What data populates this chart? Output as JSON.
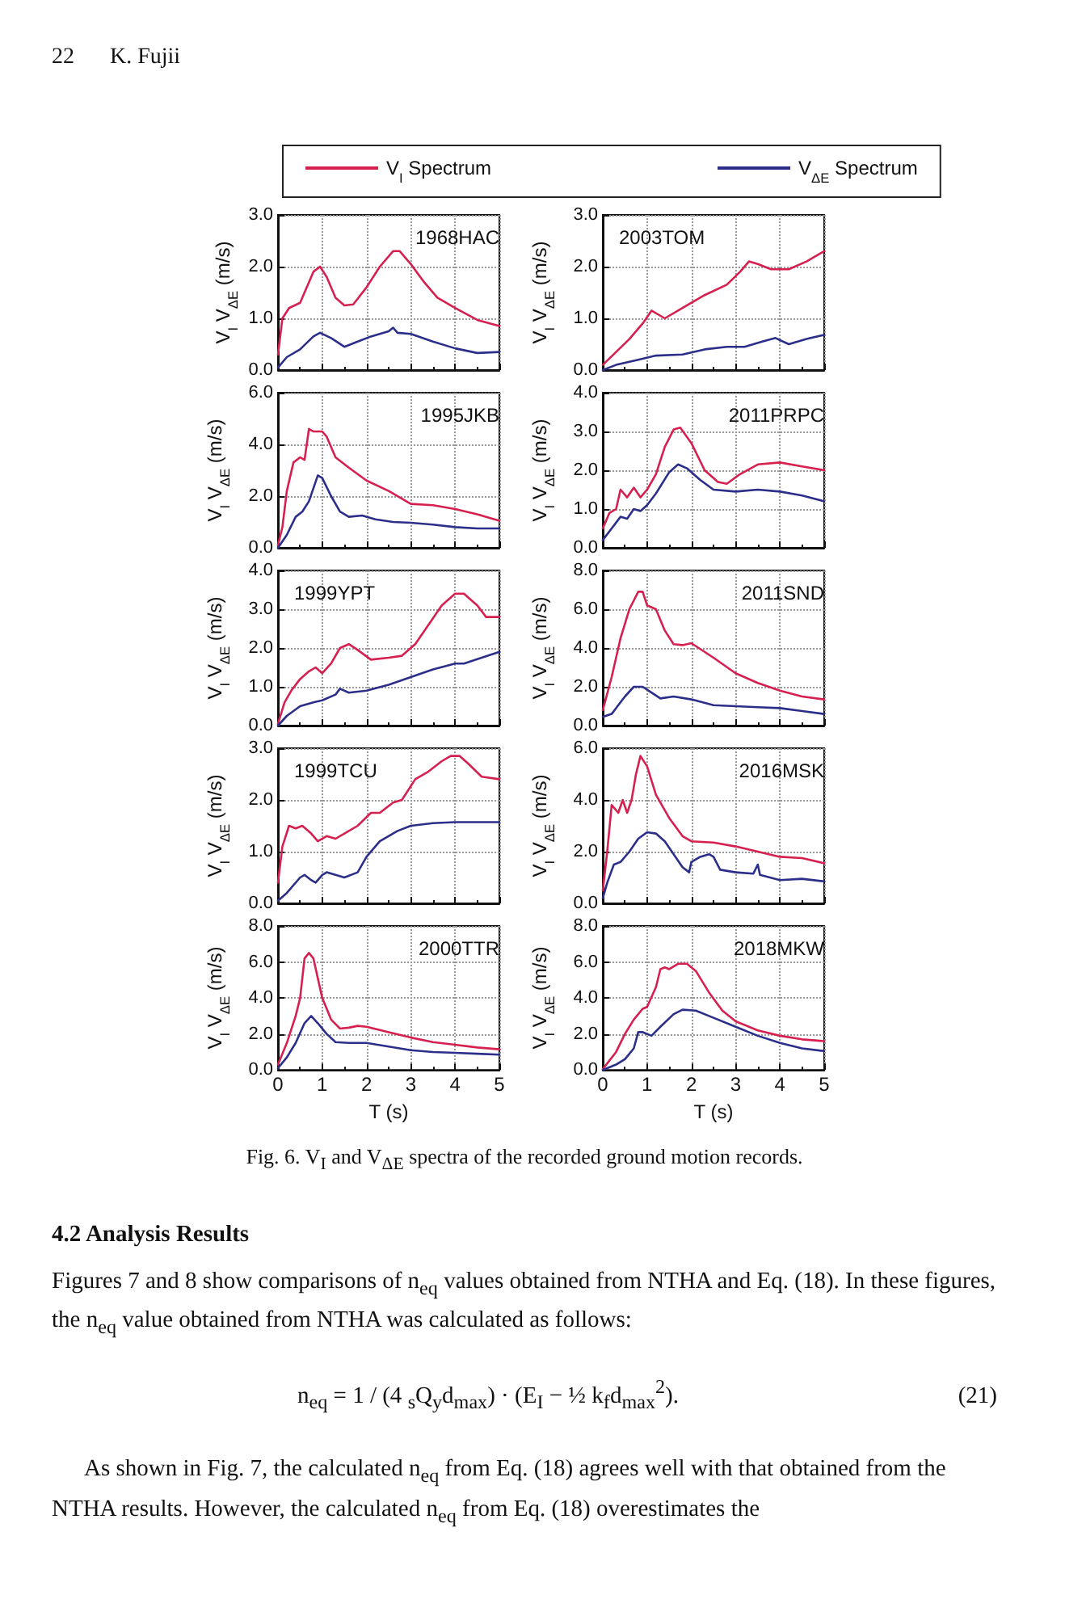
{
  "chart_data": [
    {
      "type": "line",
      "title": "1968HAC",
      "ylabel": "V$_{I}$ V$_{ΔE}$ (m/s)",
      "annotations": [
        "22",
        "K. Fujii"
      ],
      "xlim": [
        0,
        5
      ],
      "xticks": [
        0,
        1,
        2,
        3,
        4,
        5
      ],
      "ylim": [
        0,
        3
      ],
      "yticks": [
        {
          "value": 0,
          "label": "0.0"
        },
        {
          "value": 1,
          "label": "1.0"
        },
        {
          "value": 2,
          "label": "2.0"
        },
        {
          "value": 3,
          "label": "3.0"
        }
      ],
      "grid": true,
      "tick_labels": "y",
      "legend": "top",
      "marker": "none",
      "series": [
        {
          "name": "V$_{I}$ Spectrum",
          "color": "#d62050",
          "x": [
            0,
            0.1,
            0.25,
            0.5,
            0.6,
            0.8,
            0.95,
            1.1,
            1.3,
            1.5,
            1.7,
            2.0,
            2.3,
            2.6,
            2.75,
            3.0,
            3.3,
            3.6,
            4.0,
            4.5,
            5.0
          ],
          "values": [
            0.3,
            1.0,
            1.2,
            1.3,
            1.5,
            1.9,
            2.0,
            1.8,
            1.4,
            1.25,
            1.27,
            1.6,
            2.0,
            2.3,
            2.3,
            2.05,
            1.7,
            1.4,
            1.2,
            0.97,
            0.85
          ]
        },
        {
          "name": "V$_{ΔE}$ Spectrum",
          "color": "#2b2f8a",
          "x": [
            0,
            0.2,
            0.5,
            0.8,
            0.95,
            1.2,
            1.5,
            1.8,
            2.1,
            2.5,
            2.6,
            2.7,
            3.0,
            3.5,
            4.0,
            4.5,
            5.0
          ],
          "values": [
            0.05,
            0.25,
            0.4,
            0.65,
            0.72,
            0.62,
            0.45,
            0.55,
            0.65,
            0.75,
            0.82,
            0.72,
            0.7,
            0.55,
            0.42,
            0.33,
            0.35
          ]
        }
      ]
    },
    {
      "type": "line",
      "title": "2003TOM",
      "ylabel": "V$_{I}$ V$_{ΔE}$ (m/s)",
      "xlim": [
        0,
        5
      ],
      "xticks": [
        0,
        1,
        2,
        3,
        4,
        5
      ],
      "ylim": [
        0,
        3
      ],
      "yticks": [
        {
          "value": 0,
          "label": "0.0"
        },
        {
          "value": 1,
          "label": "1.0"
        },
        {
          "value": 2,
          "label": "2.0"
        },
        {
          "value": 3,
          "label": "3.0"
        }
      ],
      "grid": true,
      "tick_labels": "y",
      "marker": "none",
      "series": [
        {
          "color": "#d62050",
          "x": [
            0,
            0.3,
            0.6,
            0.9,
            1.1,
            1.4,
            1.8,
            2.3,
            2.8,
            3.1,
            3.3,
            3.5,
            3.8,
            4.2,
            4.6,
            5.0
          ],
          "values": [
            0.1,
            0.35,
            0.6,
            0.9,
            1.15,
            1.0,
            1.2,
            1.45,
            1.65,
            1.9,
            2.1,
            2.05,
            1.95,
            1.95,
            2.1,
            2.3
          ]
        },
        {
          "color": "#2b2f8a",
          "x": [
            0,
            0.3,
            0.8,
            1.2,
            1.8,
            2.3,
            2.8,
            3.2,
            3.6,
            3.9,
            4.2,
            4.6,
            5.0
          ],
          "values": [
            0.0,
            0.1,
            0.2,
            0.28,
            0.3,
            0.4,
            0.45,
            0.45,
            0.55,
            0.62,
            0.5,
            0.6,
            0.68
          ]
        }
      ]
    },
    {
      "type": "line",
      "title": "1995JKB",
      "ylabel": "V$_{I}$ V$_{ΔE}$ (m/s)",
      "xlim": [
        0,
        5
      ],
      "xticks": [
        0,
        1,
        2,
        3,
        4,
        5
      ],
      "ylim": [
        0,
        6
      ],
      "yticks": [
        {
          "value": 0,
          "label": "0.0"
        },
        {
          "value": 2,
          "label": "2.0"
        },
        {
          "value": 4,
          "label": "4.0"
        },
        {
          "value": 6,
          "label": "6.0"
        }
      ],
      "grid": true,
      "tick_labels": "y",
      "marker": "none",
      "series": [
        {
          "color": "#d62050",
          "x": [
            0,
            0.1,
            0.2,
            0.35,
            0.5,
            0.6,
            0.7,
            0.8,
            1.0,
            1.1,
            1.3,
            1.6,
            2.0,
            2.5,
            3.0,
            3.5,
            4.0,
            4.5,
            5.0
          ],
          "values": [
            0.1,
            0.8,
            2.2,
            3.3,
            3.5,
            3.4,
            4.6,
            4.5,
            4.5,
            4.3,
            3.5,
            3.1,
            2.6,
            2.2,
            1.7,
            1.65,
            1.5,
            1.3,
            1.05
          ]
        },
        {
          "color": "#2b2f8a",
          "x": [
            0,
            0.2,
            0.4,
            0.55,
            0.7,
            0.9,
            1.0,
            1.2,
            1.4,
            1.6,
            1.9,
            2.2,
            2.6,
            3.0,
            3.5,
            4.0,
            4.5,
            5.0
          ],
          "values": [
            0.0,
            0.5,
            1.2,
            1.4,
            1.8,
            2.8,
            2.7,
            2.0,
            1.4,
            1.2,
            1.25,
            1.1,
            1.0,
            0.97,
            0.9,
            0.8,
            0.75,
            0.75
          ]
        }
      ]
    },
    {
      "type": "line",
      "title": "2011PRPC",
      "ylabel": "V$_{I}$ V$_{ΔE}$ (m/s)",
      "xlim": [
        0,
        5
      ],
      "xticks": [
        0,
        1,
        2,
        3,
        4,
        5
      ],
      "ylim": [
        0,
        4
      ],
      "yticks": [
        {
          "value": 0,
          "label": "0.0"
        },
        {
          "value": 1,
          "label": "1.0"
        },
        {
          "value": 2,
          "label": "2.0"
        },
        {
          "value": 3,
          "label": "3.0"
        },
        {
          "value": 4,
          "label": "4.0"
        }
      ],
      "grid": true,
      "tick_labels": "y",
      "marker": "none",
      "series": [
        {
          "color": "#d62050",
          "x": [
            0,
            0.15,
            0.3,
            0.4,
            0.55,
            0.7,
            0.85,
            1.0,
            1.2,
            1.4,
            1.6,
            1.75,
            2.0,
            2.3,
            2.6,
            2.8,
            3.1,
            3.5,
            4.0,
            4.5,
            5.0
          ],
          "values": [
            0.5,
            0.9,
            1.0,
            1.5,
            1.3,
            1.55,
            1.3,
            1.5,
            1.9,
            2.6,
            3.05,
            3.1,
            2.7,
            2.0,
            1.7,
            1.65,
            1.9,
            2.15,
            2.2,
            2.1,
            2.0
          ]
        },
        {
          "color": "#2b2f8a",
          "x": [
            0,
            0.2,
            0.4,
            0.55,
            0.7,
            0.85,
            1.0,
            1.2,
            1.5,
            1.7,
            1.9,
            2.2,
            2.5,
            3.0,
            3.5,
            4.0,
            4.5,
            5.0
          ],
          "values": [
            0.2,
            0.5,
            0.8,
            0.75,
            1.0,
            0.95,
            1.1,
            1.4,
            1.95,
            2.15,
            2.05,
            1.75,
            1.5,
            1.45,
            1.5,
            1.45,
            1.35,
            1.2
          ]
        }
      ]
    },
    {
      "type": "line",
      "title": "1999YPT",
      "ylabel": "V$_{I}$ V$_{ΔE}$ (m/s)",
      "xlim": [
        0,
        5
      ],
      "xticks": [
        0,
        1,
        2,
        3,
        4,
        5
      ],
      "ylim": [
        0,
        4
      ],
      "yticks": [
        {
          "value": 0,
          "label": "0.0"
        },
        {
          "value": 1,
          "label": "1.0"
        },
        {
          "value": 2,
          "label": "2.0"
        },
        {
          "value": 3,
          "label": "3.0"
        },
        {
          "value": 4,
          "label": "4.0"
        }
      ],
      "grid": true,
      "tick_labels": "y",
      "marker": "none",
      "series": [
        {
          "color": "#d62050",
          "x": [
            0,
            0.15,
            0.3,
            0.5,
            0.7,
            0.85,
            1.0,
            1.2,
            1.4,
            1.6,
            1.8,
            2.1,
            2.5,
            2.8,
            3.1,
            3.4,
            3.7,
            4.0,
            4.2,
            4.5,
            4.7,
            5.0
          ],
          "values": [
            0.05,
            0.6,
            0.9,
            1.2,
            1.4,
            1.5,
            1.35,
            1.6,
            2.0,
            2.1,
            1.95,
            1.7,
            1.75,
            1.8,
            2.1,
            2.6,
            3.1,
            3.4,
            3.4,
            3.1,
            2.8,
            2.8
          ]
        },
        {
          "color": "#2b2f8a",
          "x": [
            0,
            0.2,
            0.5,
            0.8,
            1.0,
            1.3,
            1.4,
            1.6,
            2.0,
            2.5,
            3.0,
            3.5,
            4.0,
            4.2,
            4.6,
            5.0
          ],
          "values": [
            0.0,
            0.25,
            0.5,
            0.6,
            0.65,
            0.8,
            0.95,
            0.85,
            0.9,
            1.05,
            1.25,
            1.45,
            1.6,
            1.6,
            1.75,
            1.9
          ]
        }
      ]
    },
    {
      "type": "line",
      "title": "2011SND",
      "ylabel": "V$_{I}$ V$_{ΔE}$ (m/s)",
      "xlim": [
        0,
        5
      ],
      "xticks": [
        0,
        1,
        2,
        3,
        4,
        5
      ],
      "ylim": [
        0,
        8
      ],
      "yticks": [
        {
          "value": 0,
          "label": "0.0"
        },
        {
          "value": 2,
          "label": "2.0"
        },
        {
          "value": 4,
          "label": "4.0"
        },
        {
          "value": 6,
          "label": "6.0"
        },
        {
          "value": 8,
          "label": "8.0"
        }
      ],
      "grid": true,
      "tick_labels": "y",
      "marker": "none",
      "series": [
        {
          "color": "#d62050",
          "x": [
            0,
            0.2,
            0.4,
            0.6,
            0.8,
            0.9,
            1.0,
            1.2,
            1.4,
            1.6,
            1.8,
            2.0,
            2.5,
            3.0,
            3.5,
            4.0,
            4.5,
            5.0
          ],
          "values": [
            0.8,
            2.5,
            4.5,
            6.0,
            6.9,
            6.9,
            6.2,
            6.0,
            4.9,
            4.2,
            4.15,
            4.25,
            3.5,
            2.7,
            2.2,
            1.8,
            1.5,
            1.35
          ]
        },
        {
          "color": "#2b2f8a",
          "x": [
            0,
            0.2,
            0.5,
            0.7,
            0.9,
            1.1,
            1.3,
            1.6,
            2.0,
            2.5,
            3.0,
            3.5,
            4.0,
            4.5,
            5.0
          ],
          "values": [
            0.45,
            0.6,
            1.5,
            2.0,
            2.0,
            1.7,
            1.4,
            1.5,
            1.35,
            1.05,
            1.0,
            0.95,
            0.9,
            0.75,
            0.6
          ]
        }
      ]
    },
    {
      "type": "line",
      "title": "1999TCU",
      "ylabel": "V$_{I}$ V$_{ΔE}$ (m/s)",
      "xlim": [
        0,
        5
      ],
      "xticks": [
        0,
        1,
        2,
        3,
        4,
        5
      ],
      "ylim": [
        0,
        3
      ],
      "yticks": [
        {
          "value": 0,
          "label": "0.0"
        },
        {
          "value": 1,
          "label": "1.0"
        },
        {
          "value": 2,
          "label": "2.0"
        },
        {
          "value": 3,
          "label": "3.0"
        }
      ],
      "grid": true,
      "tick_labels": "y",
      "marker": "none",
      "series": [
        {
          "color": "#d62050",
          "x": [
            0,
            0.1,
            0.25,
            0.4,
            0.55,
            0.75,
            0.9,
            1.1,
            1.3,
            1.5,
            1.8,
            2.1,
            2.3,
            2.6,
            2.8,
            3.1,
            3.4,
            3.7,
            3.9,
            4.1,
            4.3,
            4.6,
            5.0
          ],
          "values": [
            0.4,
            1.1,
            1.5,
            1.45,
            1.5,
            1.35,
            1.2,
            1.3,
            1.25,
            1.35,
            1.5,
            1.75,
            1.75,
            1.95,
            2.0,
            2.4,
            2.55,
            2.75,
            2.85,
            2.85,
            2.7,
            2.45,
            2.4
          ]
        },
        {
          "color": "#2b2f8a",
          "x": [
            0,
            0.2,
            0.5,
            0.6,
            0.75,
            0.85,
            1.0,
            1.1,
            1.3,
            1.5,
            1.8,
            2.0,
            2.3,
            2.7,
            3.0,
            3.5,
            4.0,
            5.0
          ],
          "values": [
            0.05,
            0.2,
            0.5,
            0.55,
            0.45,
            0.4,
            0.55,
            0.6,
            0.55,
            0.5,
            0.6,
            0.9,
            1.2,
            1.4,
            1.5,
            1.55,
            1.57,
            1.57
          ]
        }
      ]
    },
    {
      "type": "line",
      "title": "2016MSK",
      "ylabel": "V$_{I}$ V$_{ΔE}$ (m/s)",
      "xlim": [
        0,
        5
      ],
      "xticks": [
        0,
        1,
        2,
        3,
        4,
        5
      ],
      "ylim": [
        0,
        6
      ],
      "yticks": [
        {
          "value": 0,
          "label": "0.0"
        },
        {
          "value": 2,
          "label": "2.0"
        },
        {
          "value": 4,
          "label": "4.0"
        },
        {
          "value": 6,
          "label": "6.0"
        }
      ],
      "grid": true,
      "tick_labels": "y",
      "marker": "none",
      "series": [
        {
          "color": "#d62050",
          "x": [
            0,
            0.1,
            0.2,
            0.35,
            0.45,
            0.55,
            0.65,
            0.75,
            0.85,
            1.0,
            1.2,
            1.5,
            1.8,
            2.0,
            2.5,
            3.0,
            3.5,
            4.0,
            4.5,
            5.0
          ],
          "values": [
            0.5,
            2.0,
            3.8,
            3.5,
            4.0,
            3.5,
            4.0,
            5.0,
            5.7,
            5.3,
            4.2,
            3.3,
            2.6,
            2.4,
            2.35,
            2.2,
            2.0,
            1.8,
            1.75,
            1.55
          ]
        },
        {
          "color": "#2b2f8a",
          "x": [
            0,
            0.1,
            0.25,
            0.4,
            0.6,
            0.8,
            1.0,
            1.2,
            1.4,
            1.6,
            1.8,
            1.95,
            2.0,
            2.2,
            2.4,
            2.5,
            2.65,
            3.0,
            3.4,
            3.5,
            3.55,
            4.0,
            4.5,
            5.0
          ],
          "values": [
            0.2,
            0.8,
            1.5,
            1.6,
            2.0,
            2.5,
            2.75,
            2.7,
            2.4,
            1.9,
            1.4,
            1.2,
            1.6,
            1.8,
            1.9,
            1.8,
            1.3,
            1.2,
            1.15,
            1.5,
            1.1,
            0.9,
            0.95,
            0.85
          ]
        }
      ]
    },
    {
      "type": "line",
      "title": "2000TTR",
      "ylabel": "V$_{I}$ V$_{ΔE}$ (m/s)",
      "xlabel": "T (s)",
      "xlim": [
        0,
        5
      ],
      "xticks": [
        0,
        1,
        2,
        3,
        4,
        5
      ],
      "ylim": [
        0,
        8
      ],
      "yticks": [
        {
          "value": 0,
          "label": "0.0"
        },
        {
          "value": 2,
          "label": "2.0"
        },
        {
          "value": 4,
          "label": "4.0"
        },
        {
          "value": 6,
          "label": "6.0"
        },
        {
          "value": 8,
          "label": "8.0"
        }
      ],
      "grid": true,
      "marker": "none",
      "series": [
        {
          "color": "#d62050",
          "x": [
            0,
            0.2,
            0.4,
            0.5,
            0.6,
            0.7,
            0.8,
            1.0,
            1.2,
            1.4,
            1.6,
            1.8,
            2.0,
            2.5,
            3.0,
            3.5,
            4.0,
            4.5,
            5.0
          ],
          "values": [
            0.3,
            1.5,
            3.0,
            4.0,
            6.2,
            6.5,
            6.2,
            4.0,
            2.8,
            2.3,
            2.35,
            2.45,
            2.4,
            2.1,
            1.8,
            1.55,
            1.4,
            1.25,
            1.15
          ]
        },
        {
          "color": "#2b2f8a",
          "x": [
            0,
            0.2,
            0.4,
            0.6,
            0.75,
            0.9,
            1.1,
            1.3,
            1.6,
            2.0,
            2.5,
            3.0,
            3.5,
            4.0,
            4.5,
            5.0
          ],
          "values": [
            0.1,
            0.7,
            1.5,
            2.6,
            3.0,
            2.6,
            2.0,
            1.55,
            1.5,
            1.5,
            1.3,
            1.1,
            1.0,
            0.95,
            0.9,
            0.85
          ]
        }
      ]
    },
    {
      "type": "line",
      "title": "2018MKW",
      "ylabel": "V$_{I}$ V$_{ΔE}$ (m/s)",
      "xlabel": "T (s)",
      "xlim": [
        0,
        5
      ],
      "xticks": [
        0,
        1,
        2,
        3,
        4,
        5
      ],
      "ylim": [
        0,
        8
      ],
      "yticks": [
        {
          "value": 0,
          "label": "0.0"
        },
        {
          "value": 2,
          "label": "2.0"
        },
        {
          "value": 4,
          "label": "4.0"
        },
        {
          "value": 6,
          "label": "6.0"
        },
        {
          "value": 8,
          "label": "8.0"
        }
      ],
      "grid": true,
      "marker": "none",
      "annotations": [
        "Fig. 6. V$_{I}$ and V$_{ΔE}$ spectra of the recorded ground motion records.",
        "4.2 Analysis Results",
        "Figures 7 and 8 show comparisons of n$_{eq}$ values obtained from NTHA and Eq. (18). In these figures, the n$_{eq}$ value obtained from NTHA was calculated as follows:",
        "n$_{eq}$ = 1 / (4 $_{s}$Q$_{y}$d$_{max}$) · (E$_{I}$ − ½ k$_{f}$d$_{max}$$^{2}$).",
        "(21)",
        "As shown in Fig. 7, the calculated n$_{eq}$ from Eq. (18) agrees well with that obtained from the NTHA results. However, the calculated n$_{eq}$ from Eq. (18) overestimates the"
      ],
      "series": [
        {
          "color": "#d62050",
          "x": [
            0,
            0.3,
            0.5,
            0.7,
            0.9,
            1.0,
            1.2,
            1.3,
            1.4,
            1.5,
            1.7,
            1.9,
            2.1,
            2.4,
            2.7,
            3.0,
            3.5,
            4.0,
            4.5,
            5.0
          ],
          "values": [
            0.05,
            1.0,
            2.0,
            2.8,
            3.4,
            3.5,
            4.6,
            5.6,
            5.7,
            5.6,
            5.9,
            5.9,
            5.5,
            4.3,
            3.3,
            2.7,
            2.2,
            1.9,
            1.7,
            1.6
          ]
        },
        {
          "color": "#2b2f8a",
          "x": [
            0,
            0.3,
            0.5,
            0.7,
            0.8,
            0.9,
            1.1,
            1.3,
            1.6,
            1.8,
            2.1,
            2.5,
            3.0,
            3.5,
            4.0,
            4.5,
            5.0
          ],
          "values": [
            0.0,
            0.3,
            0.6,
            1.2,
            2.1,
            2.1,
            1.9,
            2.4,
            3.1,
            3.35,
            3.3,
            2.9,
            2.4,
            1.9,
            1.5,
            1.2,
            1.05
          ]
        }
      ]
    }
  ]
}
